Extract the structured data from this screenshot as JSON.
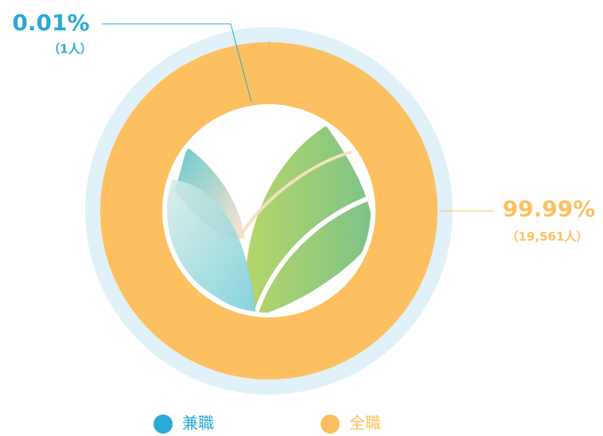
{
  "chart_data": {
    "type": "pie",
    "categories": [
      "兼職",
      "全職"
    ],
    "values": [
      0.01,
      99.99
    ],
    "value_labels": [
      "0.01%",
      "99.99%"
    ],
    "count_labels": [
      "（1人）",
      "（19,561人）"
    ],
    "colors": [
      "#29aad4",
      "#fdc060"
    ],
    "legend": "bottom"
  }
}
